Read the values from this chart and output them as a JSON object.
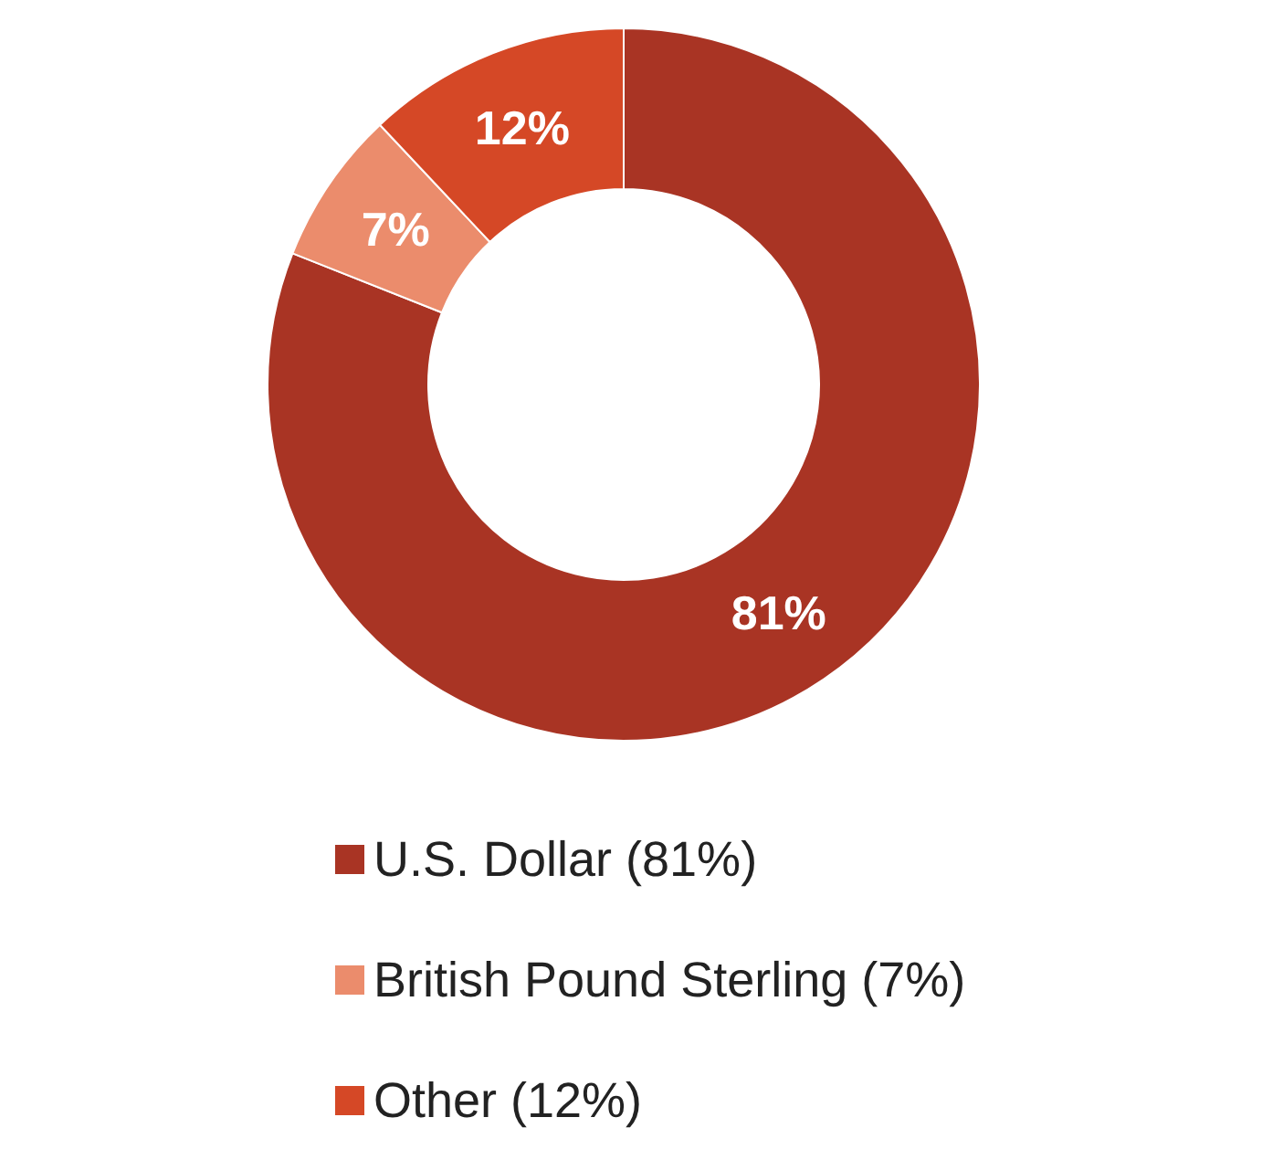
{
  "chart_data": {
    "type": "donut",
    "categories": [
      "U.S. Dollar (81%)",
      "British Pound Sterling (7%)",
      "Other (12%)"
    ],
    "values": [
      81,
      7,
      12
    ],
    "colors": [
      "#a93424",
      "#eb8c6c",
      "#d54826"
    ],
    "value_labels": [
      "81%",
      "7%",
      "12%"
    ],
    "legend": "bottom"
  }
}
